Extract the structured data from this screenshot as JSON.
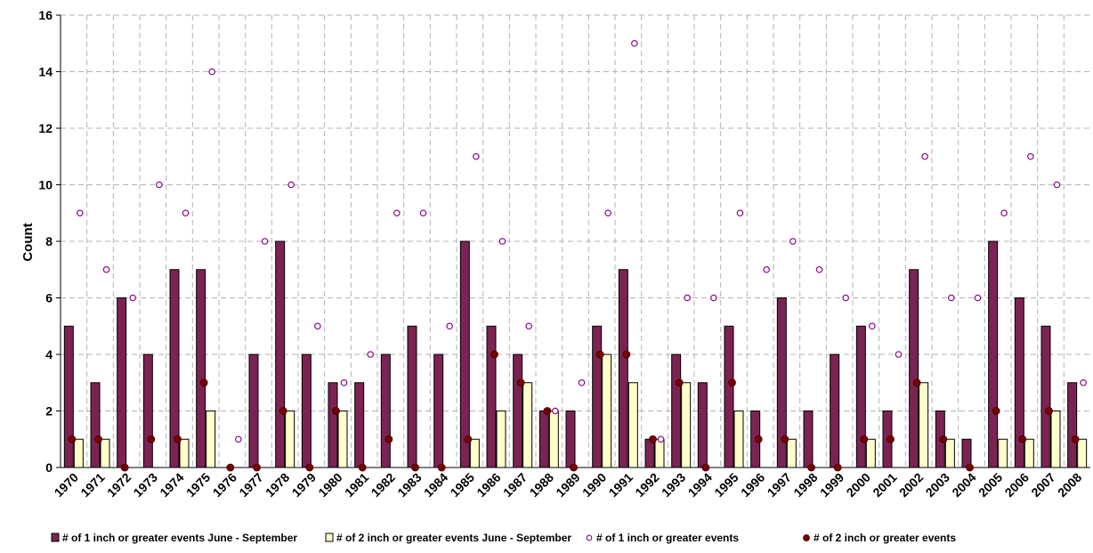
{
  "chart_data": {
    "type": "bar",
    "title": "",
    "xlabel": "",
    "ylabel": "Count",
    "ylim": [
      0,
      16
    ],
    "yticks": [
      0,
      2,
      4,
      6,
      8,
      10,
      12,
      14,
      16
    ],
    "grid": true,
    "legend_position": "bottom",
    "categories": [
      "1970",
      "1971",
      "1972",
      "1973",
      "1974",
      "1975",
      "1976",
      "1977",
      "1978",
      "1979",
      "1980",
      "1981",
      "1982",
      "1983",
      "1984",
      "1985",
      "1986",
      "1987",
      "1988",
      "1989",
      "1990",
      "1991",
      "1992",
      "1993",
      "1994",
      "1995",
      "1996",
      "1997",
      "1998",
      "1999",
      "2000",
      "2001",
      "2002",
      "2003",
      "2004",
      "2005",
      "2006",
      "2007",
      "2008"
    ],
    "series": [
      {
        "name": "# of 1 inch or greater events June - September",
        "kind": "bar",
        "color": "#7b2352",
        "values": [
          5,
          3,
          6,
          4,
          7,
          7,
          0,
          4,
          8,
          4,
          3,
          3,
          4,
          5,
          4,
          8,
          5,
          4,
          2,
          2,
          5,
          7,
          1,
          4,
          3,
          5,
          2,
          6,
          2,
          4,
          5,
          2,
          7,
          2,
          1,
          8,
          6,
          5,
          3
        ]
      },
      {
        "name": "# of 2 inch or greater events June - September",
        "kind": "bar",
        "color": "#ffffcc",
        "values": [
          1,
          1,
          0,
          0,
          1,
          2,
          0,
          0,
          2,
          0,
          2,
          0,
          0,
          0,
          0,
          1,
          2,
          3,
          2,
          0,
          4,
          3,
          1,
          3,
          0,
          2,
          0,
          1,
          0,
          0,
          1,
          0,
          3,
          1,
          0,
          1,
          1,
          2,
          1
        ]
      },
      {
        "name": "# of 1 inch or greater events",
        "kind": "marker",
        "color": "#8b008b",
        "values": [
          9,
          7,
          6,
          10,
          9,
          14,
          1,
          8,
          10,
          5,
          3,
          4,
          9,
          9,
          5,
          11,
          8,
          5,
          2,
          3,
          9,
          15,
          1,
          6,
          6,
          9,
          7,
          8,
          7,
          6,
          5,
          4,
          11,
          6,
          6,
          9,
          11,
          10,
          3
        ]
      },
      {
        "name": "# of 2 inch or greater events",
        "kind": "marker",
        "color": "#7a0000",
        "values": [
          1,
          1,
          0,
          1,
          1,
          3,
          0,
          0,
          2,
          0,
          2,
          0,
          1,
          0,
          0,
          1,
          4,
          3,
          2,
          0,
          4,
          4,
          1,
          3,
          0,
          3,
          1,
          1,
          0,
          0,
          1,
          1,
          3,
          1,
          0,
          2,
          1,
          2,
          1
        ]
      }
    ]
  }
}
